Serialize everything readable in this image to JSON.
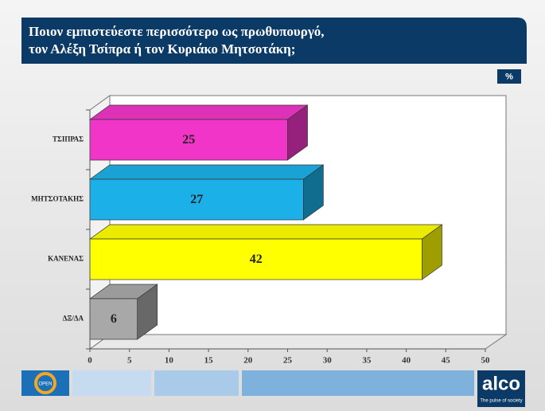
{
  "chart_data": {
    "type": "bar",
    "orientation": "horizontal",
    "three_d": true,
    "title": [
      "Ποιον εμπιστεύεστε περισσότερο ως πρωθυπουργό,",
      "τον Αλέξη Τσίπρα ή τον Κυριάκο Μητσοτάκη;"
    ],
    "unit": "%",
    "categories": [
      "ΤΣΙΠΡΑΣ",
      "ΜΗΤΣΟΤΑΚΗΣ",
      "ΚΑΝΕΝΑΣ",
      "ΔΞ/ΔΑ"
    ],
    "values": [
      25,
      27,
      42,
      6
    ],
    "colors": [
      "#f035c8",
      "#1cb0e8",
      "#ffff00",
      "#a8a8a8"
    ],
    "xlim": [
      0,
      50
    ],
    "xticks": [
      0,
      5,
      10,
      15,
      20,
      25,
      30,
      35,
      40,
      45,
      50
    ],
    "grid": false
  },
  "footer": {
    "left_logo": "OPEN",
    "right_logo": "alco",
    "tagline": "The pulse of society"
  }
}
